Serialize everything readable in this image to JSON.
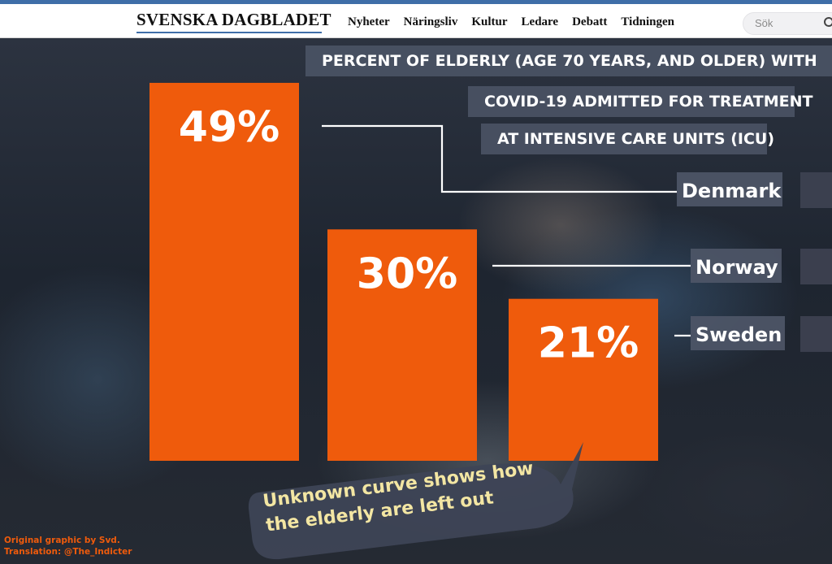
{
  "header": {
    "logo": "SVENSKA DAGBLADET",
    "nav": [
      "Nyheter",
      "Näringsliv",
      "Kultur",
      "Ledare",
      "Debatt",
      "Tidningen"
    ],
    "search_placeholder": "Sök"
  },
  "chart_data": {
    "type": "bar",
    "title_lines": [
      "PERCENT OF ELDERLY (AGE 70 YEARS, AND OLDER) WITH",
      "COVID-19 ADMITTED FOR TREATMENT",
      "AT INTENSIVE CARE UNITS (ICU)"
    ],
    "categories": [
      "Denmark",
      "Norway",
      "Sweden"
    ],
    "values": [
      49,
      30,
      21
    ],
    "value_labels": [
      "49%",
      "30%",
      "21%"
    ],
    "unit": "%",
    "ylim": [
      0,
      55
    ],
    "bar_color": "#ef5b0c"
  },
  "callout": {
    "lines": [
      "Unknown curve shows how",
      "the elderly are left out"
    ],
    "text_color": "#f3e6a3"
  },
  "credit": [
    "Original graphic by Svd.",
    "Translation: @The_Indicter"
  ],
  "colors": {
    "accent": "#ef5b0c",
    "header_rule": "#3f6ea8",
    "banner": "#4a5264"
  }
}
